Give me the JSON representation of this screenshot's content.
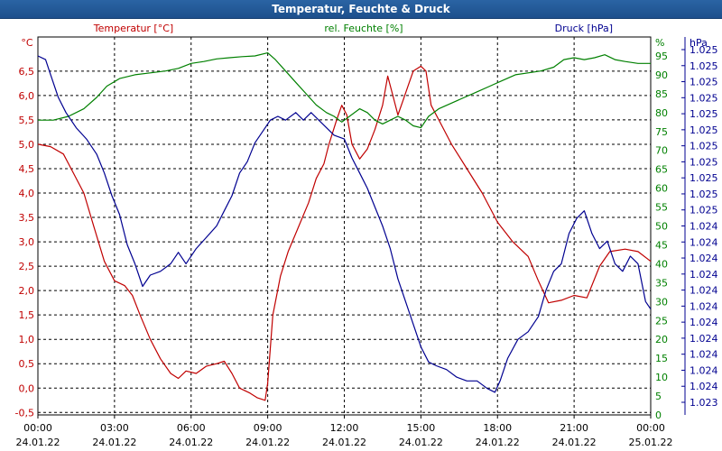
{
  "window": {
    "title": "Temperatur, Feuchte & Druck"
  },
  "chart_data": {
    "type": "line",
    "title": "Temperatur, Feuchte & Druck",
    "x_ticks": [
      {
        "time": "00:00",
        "date": "24.01.22"
      },
      {
        "time": "03:00",
        "date": "24.01.22"
      },
      {
        "time": "06:00",
        "date": "24.01.22"
      },
      {
        "time": "09:00",
        "date": "24.01.22"
      },
      {
        "time": "12:00",
        "date": "24.01.22"
      },
      {
        "time": "15:00",
        "date": "24.01.22"
      },
      {
        "time": "18:00",
        "date": "24.01.22"
      },
      {
        "time": "21:00",
        "date": "24.01.22"
      },
      {
        "time": "00:00",
        "date": "25.01.22"
      }
    ],
    "xlim_hours": [
      0,
      24
    ],
    "axes": {
      "temperature": {
        "label": "Temperatur [°C]",
        "unit": "°C",
        "color": "#c00000",
        "ylim": [
          -0.55,
          7.2
        ],
        "ticks": [
          {
            "v": -0.5,
            "t": "-0,5"
          },
          {
            "v": 0.0,
            "t": "0,0"
          },
          {
            "v": 0.5,
            "t": "0,5"
          },
          {
            "v": 1.0,
            "t": "1,0"
          },
          {
            "v": 1.5,
            "t": "1,5"
          },
          {
            "v": 2.0,
            "t": "2,0"
          },
          {
            "v": 2.5,
            "t": "2,5"
          },
          {
            "v": 3.0,
            "t": "3,0"
          },
          {
            "v": 3.5,
            "t": "3,5"
          },
          {
            "v": 4.0,
            "t": "4,0"
          },
          {
            "v": 4.5,
            "t": "4,5"
          },
          {
            "v": 5.0,
            "t": "5,0"
          },
          {
            "v": 5.5,
            "t": "5,5"
          },
          {
            "v": 6.0,
            "t": "6,0"
          },
          {
            "v": 6.5,
            "t": "6,5"
          }
        ]
      },
      "humidity": {
        "label": "rel. Feuchte [%]",
        "unit": "%",
        "color": "#008000",
        "ylim": [
          0,
          100
        ],
        "ticks": [
          {
            "v": 0,
            "t": "0"
          },
          {
            "v": 5,
            "t": "5"
          },
          {
            "v": 10,
            "t": "10"
          },
          {
            "v": 15,
            "t": "15"
          },
          {
            "v": 20,
            "t": "20"
          },
          {
            "v": 25,
            "t": "25"
          },
          {
            "v": 30,
            "t": "30"
          },
          {
            "v": 35,
            "t": "35"
          },
          {
            "v": 40,
            "t": "40"
          },
          {
            "v": 45,
            "t": "45"
          },
          {
            "v": 50,
            "t": "50"
          },
          {
            "v": 55,
            "t": "55"
          },
          {
            "v": 60,
            "t": "60"
          },
          {
            "v": 65,
            "t": "65"
          },
          {
            "v": 70,
            "t": "70"
          },
          {
            "v": 75,
            "t": "75"
          },
          {
            "v": 80,
            "t": "80"
          },
          {
            "v": 85,
            "t": "85"
          },
          {
            "v": 90,
            "t": "90"
          },
          {
            "v": 95,
            "t": "95"
          }
        ]
      },
      "pressure": {
        "label": "Druck [hPa]",
        "unit": "hPa",
        "color": "#000090",
        "ticks": [
          "1.023",
          "1.024",
          "1.024",
          "1.024",
          "1.024",
          "1.024",
          "1.024",
          "1.024",
          "1.024",
          "1.024",
          "1.024",
          "1.024",
          "1.025",
          "1.025",
          "1.025",
          "1.025",
          "1.025",
          "1.025",
          "1.025",
          "1.025",
          "1.025",
          "1.025",
          "1.025"
        ]
      }
    },
    "series": [
      {
        "name": "Temperatur [°C]",
        "axis": "temperature",
        "color": "#c00000",
        "points": [
          [
            0,
            5.0
          ],
          [
            0.5,
            4.95
          ],
          [
            1,
            4.8
          ],
          [
            1.3,
            4.5
          ],
          [
            1.8,
            4.0
          ],
          [
            2.2,
            3.3
          ],
          [
            2.6,
            2.6
          ],
          [
            3,
            2.2
          ],
          [
            3.4,
            2.1
          ],
          [
            3.7,
            1.9
          ],
          [
            4,
            1.5
          ],
          [
            4.4,
            1.0
          ],
          [
            4.8,
            0.6
          ],
          [
            5.2,
            0.3
          ],
          [
            5.5,
            0.2
          ],
          [
            5.8,
            0.35
          ],
          [
            6.2,
            0.3
          ],
          [
            6.6,
            0.45
          ],
          [
            7,
            0.5
          ],
          [
            7.3,
            0.55
          ],
          [
            7.6,
            0.3
          ],
          [
            7.9,
            0.0
          ],
          [
            8.3,
            -0.1
          ],
          [
            8.6,
            -0.2
          ],
          [
            8.9,
            -0.25
          ],
          [
            9.0,
            0.1
          ],
          [
            9.2,
            1.5
          ],
          [
            9.5,
            2.3
          ],
          [
            9.8,
            2.8
          ],
          [
            10.2,
            3.3
          ],
          [
            10.6,
            3.8
          ],
          [
            10.9,
            4.3
          ],
          [
            11.2,
            4.6
          ],
          [
            11.4,
            5.0
          ],
          [
            11.7,
            5.5
          ],
          [
            11.9,
            5.8
          ],
          [
            12.1,
            5.6
          ],
          [
            12.3,
            5.0
          ],
          [
            12.6,
            4.7
          ],
          [
            12.9,
            4.9
          ],
          [
            13.2,
            5.3
          ],
          [
            13.5,
            5.8
          ],
          [
            13.7,
            6.4
          ],
          [
            13.9,
            6.0
          ],
          [
            14.1,
            5.6
          ],
          [
            14.3,
            5.9
          ],
          [
            14.5,
            6.2
          ],
          [
            14.7,
            6.5
          ],
          [
            15,
            6.6
          ],
          [
            15.2,
            6.5
          ],
          [
            15.4,
            5.8
          ],
          [
            15.7,
            5.5
          ],
          [
            16.2,
            5.0
          ],
          [
            16.8,
            4.5
          ],
          [
            17.4,
            4.0
          ],
          [
            18,
            3.4
          ],
          [
            18.6,
            3.0
          ],
          [
            19.2,
            2.7
          ],
          [
            19.6,
            2.2
          ],
          [
            20,
            1.75
          ],
          [
            20.5,
            1.8
          ],
          [
            21,
            1.9
          ],
          [
            21.5,
            1.85
          ],
          [
            22,
            2.5
          ],
          [
            22.4,
            2.8
          ],
          [
            23,
            2.85
          ],
          [
            23.5,
            2.8
          ],
          [
            24,
            2.6
          ]
        ]
      },
      {
        "name": "rel. Feuchte [%]",
        "axis": "humidity",
        "color": "#008000",
        "points": [
          [
            0,
            78
          ],
          [
            0.6,
            78
          ],
          [
            1.2,
            79
          ],
          [
            1.8,
            81
          ],
          [
            2.3,
            84
          ],
          [
            2.7,
            87
          ],
          [
            3.2,
            89
          ],
          [
            3.8,
            90
          ],
          [
            4.4,
            90.5
          ],
          [
            5,
            91
          ],
          [
            5.5,
            91.7
          ],
          [
            6,
            93
          ],
          [
            6.5,
            93.5
          ],
          [
            7,
            94.2
          ],
          [
            7.5,
            94.5
          ],
          [
            8,
            94.8
          ],
          [
            8.5,
            95
          ],
          [
            9,
            95.8
          ],
          [
            9.3,
            94
          ],
          [
            9.7,
            91
          ],
          [
            10.1,
            88
          ],
          [
            10.5,
            85
          ],
          [
            10.9,
            82
          ],
          [
            11.3,
            80
          ],
          [
            11.6,
            79
          ],
          [
            11.9,
            77.5
          ],
          [
            12.2,
            79
          ],
          [
            12.6,
            81
          ],
          [
            12.9,
            80
          ],
          [
            13.2,
            78
          ],
          [
            13.5,
            77
          ],
          [
            13.8,
            78
          ],
          [
            14.1,
            79
          ],
          [
            14.4,
            78
          ],
          [
            14.7,
            76.5
          ],
          [
            15,
            76
          ],
          [
            15.3,
            79
          ],
          [
            15.7,
            81
          ],
          [
            16.2,
            82.5
          ],
          [
            16.7,
            84
          ],
          [
            17.2,
            85.5
          ],
          [
            17.7,
            87
          ],
          [
            18.2,
            88.5
          ],
          [
            18.7,
            90
          ],
          [
            19.2,
            90.5
          ],
          [
            19.7,
            91
          ],
          [
            20.2,
            92
          ],
          [
            20.6,
            94
          ],
          [
            21,
            94.5
          ],
          [
            21.4,
            94
          ],
          [
            21.8,
            94.5
          ],
          [
            22.2,
            95.3
          ],
          [
            22.6,
            94
          ],
          [
            23,
            93.5
          ],
          [
            23.5,
            93
          ],
          [
            24,
            93
          ]
        ]
      },
      {
        "name": "Druck [hPa]",
        "axis": "pressure",
        "color": "#000090",
        "ylim": [
          0,
          100
        ],
        "points": [
          [
            0,
            95
          ],
          [
            0.3,
            94
          ],
          [
            0.5,
            90
          ],
          [
            0.8,
            84
          ],
          [
            1.1,
            80
          ],
          [
            1.5,
            76
          ],
          [
            1.9,
            73
          ],
          [
            2.3,
            69
          ],
          [
            2.6,
            64
          ],
          [
            2.9,
            58
          ],
          [
            3.2,
            53
          ],
          [
            3.5,
            45
          ],
          [
            3.8,
            40
          ],
          [
            4.1,
            34
          ],
          [
            4.4,
            37
          ],
          [
            4.8,
            38
          ],
          [
            5.2,
            40
          ],
          [
            5.5,
            43
          ],
          [
            5.8,
            40
          ],
          [
            6.2,
            44
          ],
          [
            6.6,
            47
          ],
          [
            7,
            50
          ],
          [
            7.3,
            54
          ],
          [
            7.6,
            58
          ],
          [
            7.9,
            64
          ],
          [
            8.2,
            67
          ],
          [
            8.5,
            72
          ],
          [
            8.8,
            75
          ],
          [
            9.1,
            78
          ],
          [
            9.4,
            79
          ],
          [
            9.7,
            78
          ],
          [
            10.1,
            80
          ],
          [
            10.4,
            78
          ],
          [
            10.7,
            80
          ],
          [
            11,
            78
          ],
          [
            11.3,
            76
          ],
          [
            11.6,
            74
          ],
          [
            12,
            73
          ],
          [
            12.3,
            68
          ],
          [
            12.6,
            64
          ],
          [
            12.9,
            60
          ],
          [
            13.2,
            55
          ],
          [
            13.5,
            50
          ],
          [
            13.8,
            44
          ],
          [
            14.1,
            36
          ],
          [
            14.4,
            30
          ],
          [
            14.7,
            24
          ],
          [
            15,
            18
          ],
          [
            15.3,
            14
          ],
          [
            15.6,
            13
          ],
          [
            16,
            12
          ],
          [
            16.4,
            10
          ],
          [
            16.8,
            9
          ],
          [
            17.2,
            9
          ],
          [
            17.6,
            7
          ],
          [
            17.9,
            6
          ],
          [
            18.1,
            9
          ],
          [
            18.4,
            15
          ],
          [
            18.8,
            20
          ],
          [
            19.2,
            22
          ],
          [
            19.6,
            26
          ],
          [
            19.9,
            33
          ],
          [
            20.2,
            38
          ],
          [
            20.5,
            40
          ],
          [
            20.8,
            48
          ],
          [
            21.1,
            52
          ],
          [
            21.4,
            54
          ],
          [
            21.7,
            48
          ],
          [
            22,
            44
          ],
          [
            22.3,
            46
          ],
          [
            22.6,
            40
          ],
          [
            22.9,
            38
          ],
          [
            23.2,
            42
          ],
          [
            23.5,
            40
          ],
          [
            23.8,
            30
          ],
          [
            24,
            28
          ]
        ]
      }
    ],
    "grid": true,
    "legend": "top"
  }
}
